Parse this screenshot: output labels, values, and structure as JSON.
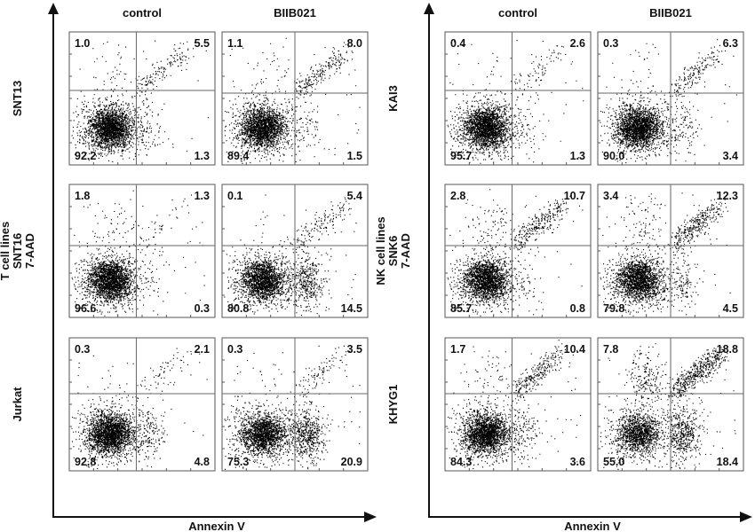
{
  "chart_data": [
    {
      "type": "scatter",
      "group_label": "T cell lines",
      "ylabel": "7-AAD",
      "xlabel": "Annexin V",
      "columns": [
        "control",
        "BIIB021"
      ],
      "rows": [
        {
          "name": "SNT13",
          "panels": [
            {
              "condition": "control",
              "quadrants": {
                "upper_left": "1.0",
                "upper_right": "5.5",
                "lower_left": "92.2",
                "lower_right": "1.3"
              }
            },
            {
              "condition": "BIIB021",
              "quadrants": {
                "upper_left": "1.1",
                "upper_right": "8.0",
                "lower_left": "89.4",
                "lower_right": "1.5"
              }
            }
          ]
        },
        {
          "name": "SNT16",
          "panels": [
            {
              "condition": "control",
              "quadrants": {
                "upper_left": "1.8",
                "upper_right": "1.3",
                "lower_left": "96.6",
                "lower_right": "0.3"
              }
            },
            {
              "condition": "BIIB021",
              "quadrants": {
                "upper_left": "0.1",
                "upper_right": "5.4",
                "lower_left": "80.8",
                "lower_right": "14.5"
              }
            }
          ]
        },
        {
          "name": "Jurkat",
          "panels": [
            {
              "condition": "control",
              "quadrants": {
                "upper_left": "0.3",
                "upper_right": "2.1",
                "lower_left": "92.8",
                "lower_right": "4.8"
              }
            },
            {
              "condition": "BIIB021",
              "quadrants": {
                "upper_left": "0.3",
                "upper_right": "3.5",
                "lower_left": "75.3",
                "lower_right": "20.9"
              }
            }
          ]
        }
      ]
    },
    {
      "type": "scatter",
      "group_label": "NK cell lines",
      "ylabel": "7-AAD",
      "xlabel": "Annexin V",
      "columns": [
        "control",
        "BIIB021"
      ],
      "rows": [
        {
          "name": "KAI3",
          "panels": [
            {
              "condition": "control",
              "quadrants": {
                "upper_left": "0.4",
                "upper_right": "2.6",
                "lower_left": "95.7",
                "lower_right": "1.3"
              }
            },
            {
              "condition": "BIIB021",
              "quadrants": {
                "upper_left": "0.3",
                "upper_right": "6.3",
                "lower_left": "90.0",
                "lower_right": "3.4"
              }
            }
          ]
        },
        {
          "name": "SNK6",
          "panels": [
            {
              "condition": "control",
              "quadrants": {
                "upper_left": "2.8",
                "upper_right": "10.7",
                "lower_left": "85.7",
                "lower_right": "0.8"
              }
            },
            {
              "condition": "BIIB021",
              "quadrants": {
                "upper_left": "3.4",
                "upper_right": "12.3",
                "lower_left": "79.8",
                "lower_right": "4.5"
              }
            }
          ]
        },
        {
          "name": "KHYG1",
          "panels": [
            {
              "condition": "control",
              "quadrants": {
                "upper_left": "1.7",
                "upper_right": "10.4",
                "lower_left": "84.3",
                "lower_right": "3.6"
              }
            },
            {
              "condition": "BIIB021",
              "quadrants": {
                "upper_left": "7.8",
                "upper_right": "18.8",
                "lower_left": "55.0",
                "lower_right": "18.4"
              }
            }
          ]
        }
      ]
    }
  ]
}
